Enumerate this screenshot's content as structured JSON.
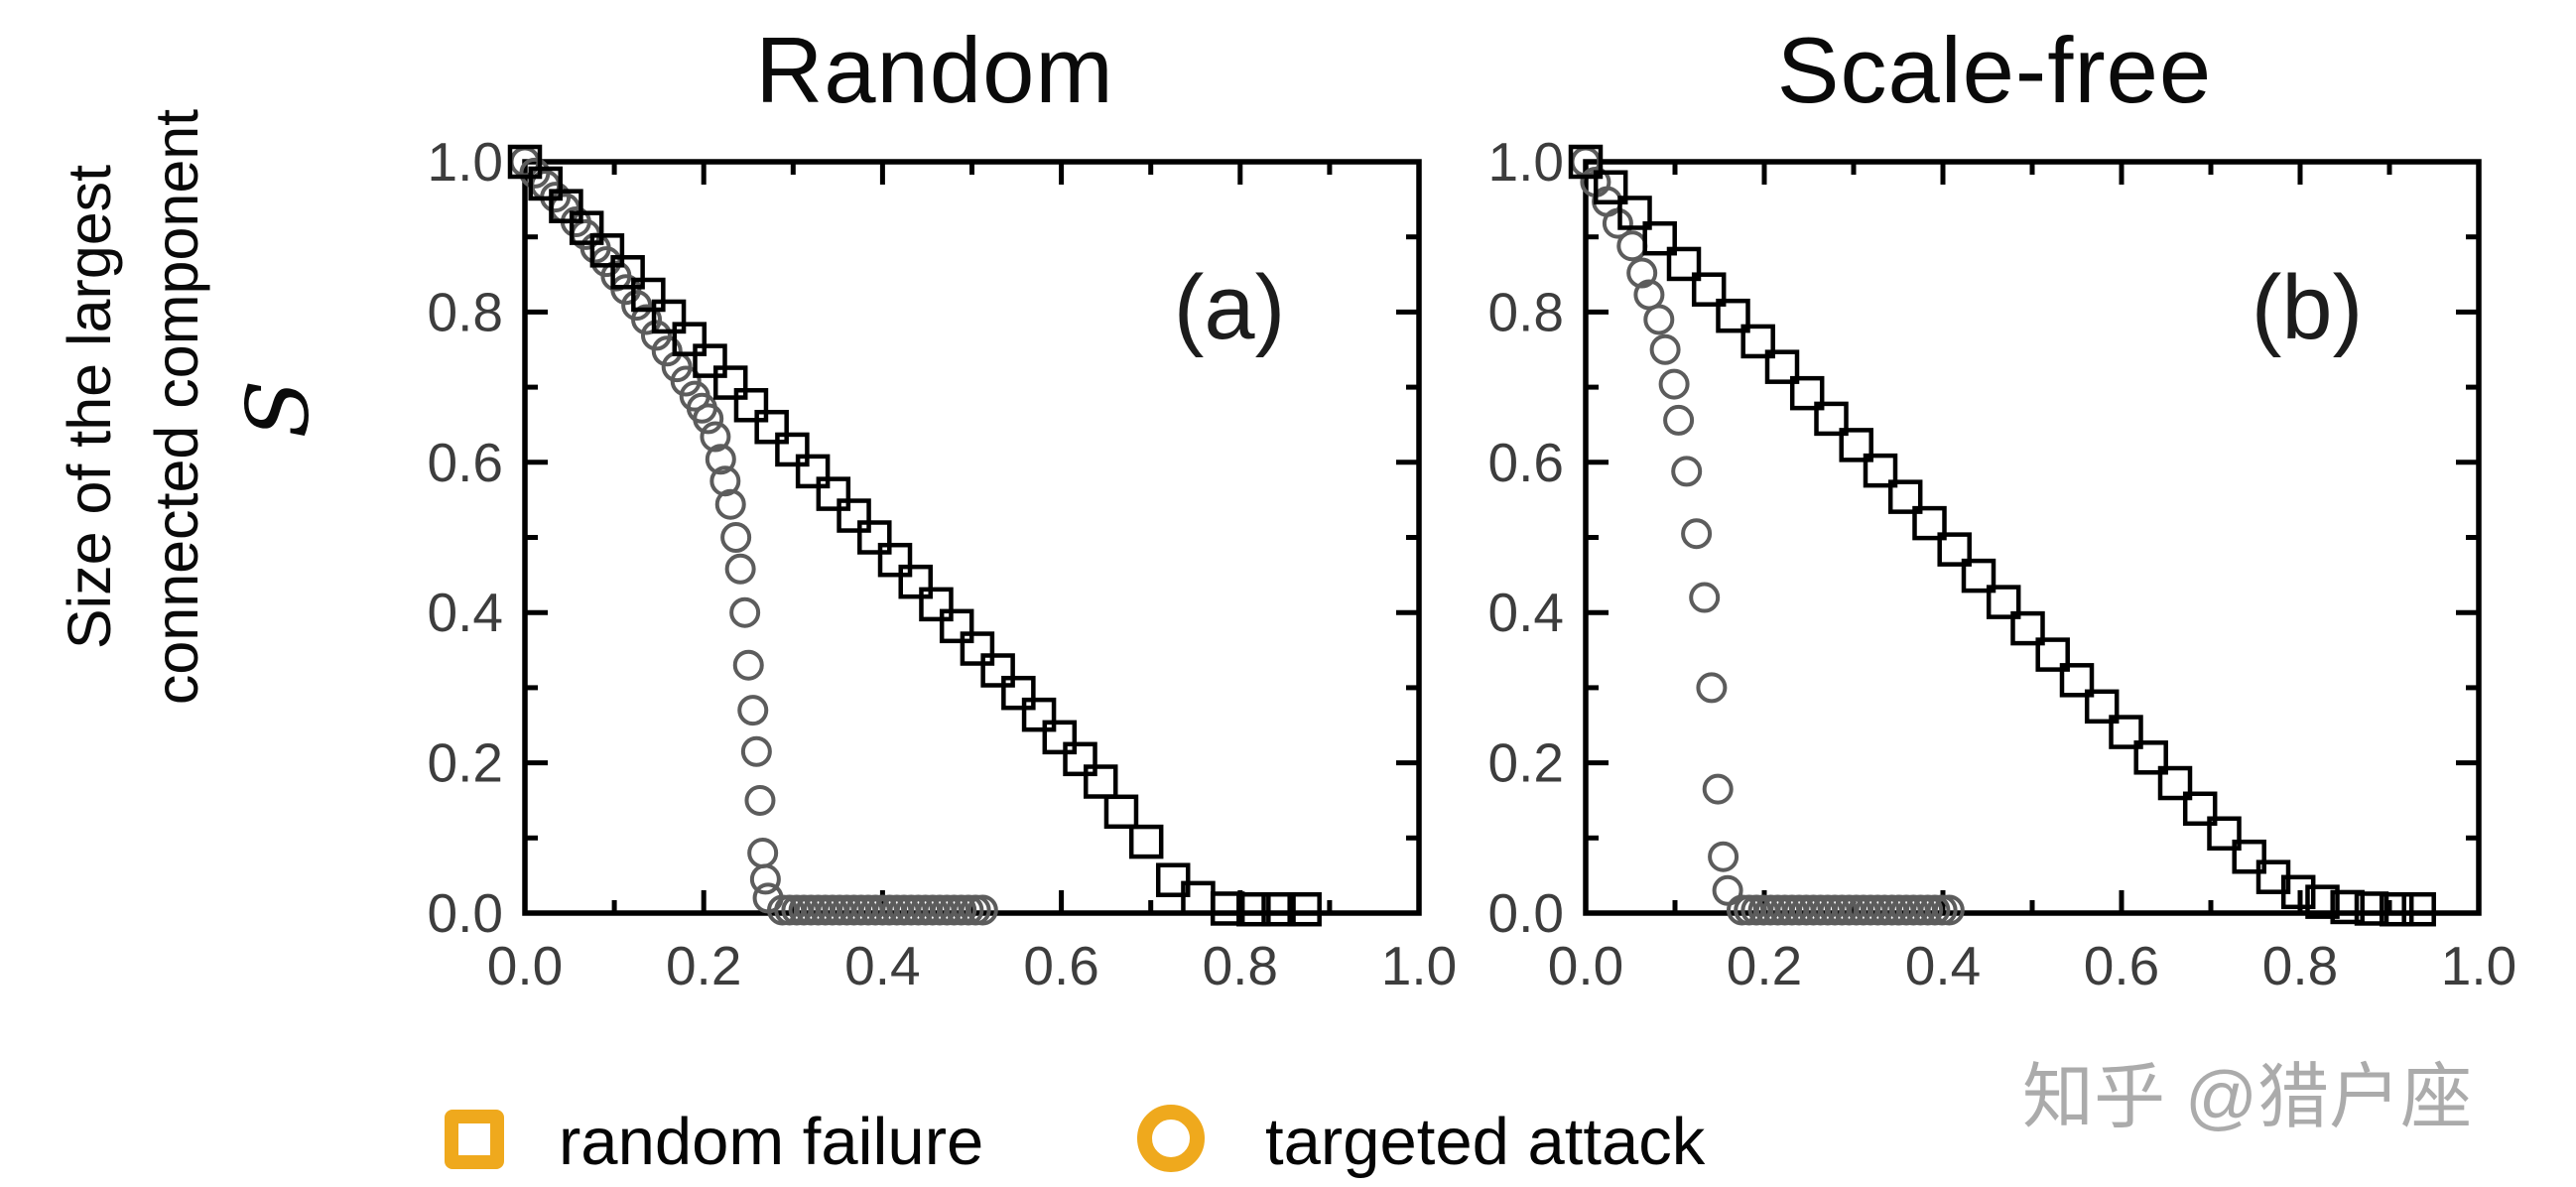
{
  "figure": {
    "titles": {
      "left": "Random",
      "right": "Scale-free"
    },
    "panel_labels": {
      "left": "(a)",
      "right": "(b)"
    },
    "y_axis_label": "Size of the largest\nconnected component",
    "y_axis_symbol": "S",
    "legend": {
      "items": [
        {
          "marker": "square-icon",
          "label": "random failure"
        },
        {
          "marker": "circle-icon",
          "label": "targeted attack"
        }
      ],
      "accent_color": "#EFA91D"
    },
    "watermark": "知乎 @猎户座",
    "colors": {
      "axis": "#000000",
      "square_marker": "#000000",
      "circle_marker": "#5c5c5c",
      "tick_label": "#3d3d3d",
      "watermark": "#ABABAB",
      "legend_accent": "#EFA91D"
    }
  },
  "chart_data": [
    {
      "type": "scatter",
      "title": "Random",
      "panel": "(a)",
      "xlim": [
        0,
        1
      ],
      "ylim": [
        0,
        1
      ],
      "grid": false,
      "x_tick_values": [
        0.0,
        0.2,
        0.4,
        0.6,
        0.8,
        1.0
      ],
      "x_tick_labels": [
        "0.0",
        "0.2",
        "0.4",
        "0.6",
        "0.8",
        "1.0"
      ],
      "y_tick_values": [
        0.0,
        0.2,
        0.4,
        0.6,
        0.8,
        1.0
      ],
      "y_tick_labels": [
        "0.0",
        "0.2",
        "0.4",
        "0.6",
        "0.8",
        "1.0"
      ],
      "minor_tick_step": 0.1,
      "series": [
        {
          "name": "targeted attack",
          "marker": "circle",
          "x": [
            0.0,
            0.011,
            0.023,
            0.034,
            0.045,
            0.057,
            0.068,
            0.079,
            0.091,
            0.102,
            0.113,
            0.125,
            0.136,
            0.147,
            0.159,
            0.17,
            0.18,
            0.19,
            0.198,
            0.205,
            0.213,
            0.219,
            0.224,
            0.23,
            0.236,
            0.241,
            0.246,
            0.25,
            0.255,
            0.259,
            0.263,
            0.266,
            0.269,
            0.272,
            0.288,
            0.296,
            0.304,
            0.312,
            0.32,
            0.328,
            0.336,
            0.344,
            0.352,
            0.36,
            0.368,
            0.376,
            0.384,
            0.392,
            0.4,
            0.408,
            0.416,
            0.424,
            0.432,
            0.44,
            0.448,
            0.456,
            0.464,
            0.472,
            0.48,
            0.488,
            0.496,
            0.504,
            0.512
          ],
          "y": [
            1.0,
            0.985,
            0.969,
            0.953,
            0.938,
            0.92,
            0.903,
            0.885,
            0.867,
            0.848,
            0.83,
            0.809,
            0.79,
            0.769,
            0.748,
            0.727,
            0.708,
            0.688,
            0.672,
            0.658,
            0.634,
            0.604,
            0.575,
            0.544,
            0.5,
            0.458,
            0.4,
            0.33,
            0.27,
            0.215,
            0.15,
            0.08,
            0.045,
            0.02,
            0.004,
            0.004,
            0.004,
            0.004,
            0.004,
            0.004,
            0.004,
            0.004,
            0.004,
            0.004,
            0.004,
            0.004,
            0.004,
            0.004,
            0.004,
            0.004,
            0.004,
            0.004,
            0.004,
            0.004,
            0.004,
            0.004,
            0.004,
            0.004,
            0.004,
            0.004,
            0.004,
            0.004,
            0.004
          ]
        },
        {
          "name": "random failure",
          "marker": "square",
          "x": [
            0.0,
            0.023,
            0.046,
            0.069,
            0.092,
            0.115,
            0.138,
            0.161,
            0.184,
            0.207,
            0.23,
            0.253,
            0.276,
            0.299,
            0.322,
            0.345,
            0.368,
            0.391,
            0.414,
            0.437,
            0.46,
            0.483,
            0.506,
            0.529,
            0.552,
            0.575,
            0.598,
            0.621,
            0.644,
            0.667,
            0.695,
            0.725,
            0.753,
            0.786,
            0.815,
            0.843,
            0.872
          ],
          "y": [
            1.0,
            0.971,
            0.941,
            0.912,
            0.882,
            0.853,
            0.823,
            0.794,
            0.764,
            0.735,
            0.706,
            0.676,
            0.647,
            0.617,
            0.588,
            0.558,
            0.529,
            0.5,
            0.47,
            0.441,
            0.411,
            0.382,
            0.352,
            0.323,
            0.293,
            0.264,
            0.234,
            0.205,
            0.175,
            0.135,
            0.095,
            0.044,
            0.02,
            0.006,
            0.005,
            0.005,
            0.005
          ]
        }
      ]
    },
    {
      "type": "scatter",
      "title": "Scale-free",
      "panel": "(b)",
      "xlim": [
        0,
        1
      ],
      "ylim": [
        0,
        1
      ],
      "grid": false,
      "x_tick_values": [
        0.0,
        0.2,
        0.4,
        0.6,
        0.8,
        1.0
      ],
      "x_tick_labels": [
        "0.0",
        "0.2",
        "0.4",
        "0.6",
        "0.8",
        "1.0"
      ],
      "y_tick_values": [
        0.0,
        0.2,
        0.4,
        0.6,
        0.8,
        1.0
      ],
      "y_tick_labels": [
        "0.0",
        "0.2",
        "0.4",
        "0.6",
        "0.8",
        "1.0"
      ],
      "minor_tick_step": 0.1,
      "series": [
        {
          "name": "targeted attack",
          "marker": "circle",
          "x": [
            0.0,
            0.011,
            0.024,
            0.036,
            0.052,
            0.063,
            0.071,
            0.082,
            0.089,
            0.099,
            0.104,
            0.113,
            0.124,
            0.133,
            0.141,
            0.148,
            0.154,
            0.159,
            0.175,
            0.183,
            0.191,
            0.199,
            0.207,
            0.215,
            0.223,
            0.231,
            0.239,
            0.247,
            0.255,
            0.263,
            0.271,
            0.279,
            0.287,
            0.295,
            0.303,
            0.311,
            0.319,
            0.327,
            0.335,
            0.343,
            0.351,
            0.359,
            0.367,
            0.375,
            0.383,
            0.391,
            0.399,
            0.407
          ],
          "y": [
            1.0,
            0.973,
            0.947,
            0.918,
            0.888,
            0.852,
            0.823,
            0.79,
            0.75,
            0.704,
            0.656,
            0.588,
            0.505,
            0.42,
            0.3,
            0.165,
            0.075,
            0.03,
            0.004,
            0.004,
            0.004,
            0.004,
            0.004,
            0.004,
            0.004,
            0.004,
            0.004,
            0.004,
            0.004,
            0.004,
            0.004,
            0.004,
            0.004,
            0.004,
            0.004,
            0.004,
            0.004,
            0.004,
            0.004,
            0.004,
            0.004,
            0.004,
            0.004,
            0.004,
            0.004,
            0.004,
            0.004,
            0.004
          ]
        },
        {
          "name": "random failure",
          "marker": "square",
          "x": [
            0.0,
            0.028,
            0.055,
            0.083,
            0.11,
            0.138,
            0.165,
            0.193,
            0.22,
            0.248,
            0.275,
            0.303,
            0.33,
            0.358,
            0.385,
            0.413,
            0.44,
            0.468,
            0.495,
            0.523,
            0.55,
            0.578,
            0.605,
            0.633,
            0.66,
            0.688,
            0.715,
            0.743,
            0.77,
            0.798,
            0.825,
            0.853,
            0.88,
            0.908,
            0.933
          ],
          "y": [
            1.0,
            0.966,
            0.932,
            0.898,
            0.864,
            0.83,
            0.795,
            0.761,
            0.727,
            0.692,
            0.658,
            0.623,
            0.589,
            0.554,
            0.519,
            0.484,
            0.449,
            0.414,
            0.379,
            0.344,
            0.31,
            0.275,
            0.241,
            0.207,
            0.173,
            0.139,
            0.106,
            0.075,
            0.048,
            0.028,
            0.015,
            0.008,
            0.006,
            0.005,
            0.005
          ]
        }
      ]
    }
  ]
}
